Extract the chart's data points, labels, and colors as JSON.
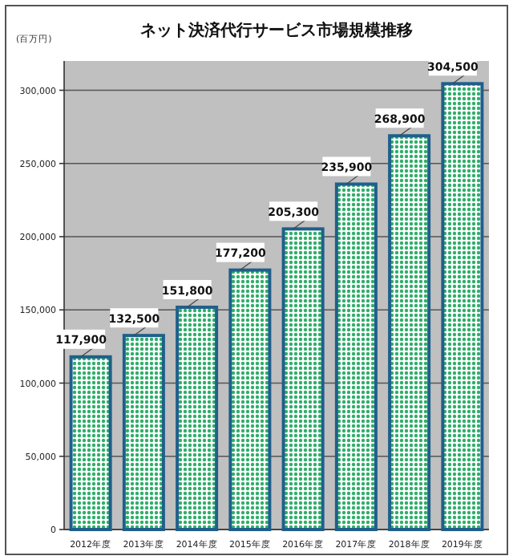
{
  "chart_data": {
    "type": "bar",
    "title": "ネット決済代行サービス市場規模推移",
    "ylabel": "(百万円)",
    "categories": [
      "2012年度",
      "2013年度",
      "2014年度",
      "2015年度",
      "2016年度",
      "2017年度",
      "2018年度",
      "2019年度"
    ],
    "values": [
      117900,
      132500,
      151800,
      177200,
      205300,
      235900,
      268900,
      304500
    ],
    "value_labels": [
      "117,900",
      "132,500",
      "151,800",
      "177,200",
      "205,300",
      "235,900",
      "268,900",
      "304,500"
    ],
    "color": "#1f5f8b",
    "ylim": [
      0,
      320000
    ],
    "yticks": [
      0,
      {
        "value": 50000,
        "label": "50,000"
      },
      {
        "value": 100000,
        "label": "100,000"
      },
      {
        "value": 150000,
        "label": "150,000"
      },
      {
        "value": 200000,
        "label": "200,000"
      },
      {
        "value": 250000,
        "label": "250,000"
      },
      {
        "value": 300000,
        "label": "300,000"
      }
    ],
    "grid": "y"
  }
}
